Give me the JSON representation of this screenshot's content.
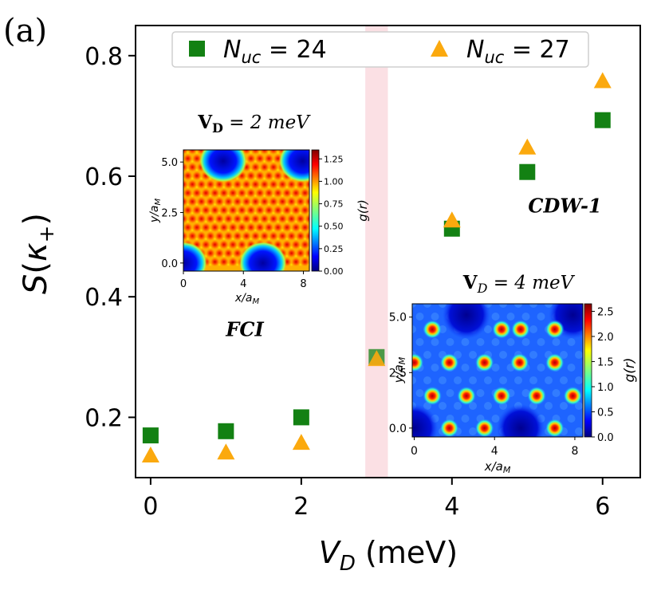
{
  "panel_label": "(a)",
  "chart_data": {
    "type": "scatter",
    "xlabel": "V_D (meV)",
    "ylabel": "S(κ+)",
    "xlim": [
      -0.2,
      6.5
    ],
    "ylim": [
      0.1,
      0.85
    ],
    "xticks": [
      "0",
      "2",
      "4",
      "6"
    ],
    "yticks": [
      "0.2",
      "0.4",
      "0.6",
      "0.8"
    ],
    "xtick_values": [
      0,
      2,
      4,
      6
    ],
    "ytick_values": [
      0.2,
      0.4,
      0.6,
      0.8
    ],
    "grid": false,
    "legend_placement": "top-center",
    "transition_band": {
      "x_range": [
        2.85,
        3.15
      ],
      "color": "#fbe0e4"
    },
    "series": [
      {
        "name": "N_uc = 24",
        "marker": "square",
        "color": "#138113",
        "x": [
          0,
          1,
          2,
          3,
          4,
          5,
          6
        ],
        "y": [
          0.17,
          0.177,
          0.2,
          0.3,
          0.513,
          0.607,
          0.693
        ]
      },
      {
        "name": "N_uc = 27",
        "marker": "triangle",
        "color": "#fba90e",
        "x": [
          0,
          1,
          2,
          3,
          4,
          5,
          6
        ],
        "y": [
          0.137,
          0.142,
          0.158,
          0.297,
          0.527,
          0.648,
          0.758
        ]
      }
    ],
    "annotations": [
      {
        "text": "FCI",
        "x": 1.25,
        "y": 0.335
      },
      {
        "text": "CDW-1",
        "x": 5.5,
        "y": 0.54
      }
    ]
  },
  "insets": [
    {
      "title_main": "V",
      "title_sub": "D",
      "title_rest": " = 2 meV",
      "xlabel": "x/a_M",
      "ylabel": "y/a_M",
      "xticks": [
        "0",
        "4",
        "8"
      ],
      "yticks": [
        "0.0",
        "2.5",
        "5.0"
      ],
      "colorbar_label": "g(r)",
      "colorbar_ticks": [
        "0.00",
        "0.25",
        "0.50",
        "0.75",
        "1.00",
        "1.25"
      ],
      "colorbar_max": 1.35
    },
    {
      "title_main": "V",
      "title_sub": "D",
      "title_rest": " = 4 meV",
      "xlabel": "x/a_M",
      "ylabel": "y/a_M",
      "xticks": [
        "0",
        "4",
        "8"
      ],
      "yticks": [
        "0.0",
        "2.5",
        "5.0"
      ],
      "colorbar_label": "g(r)",
      "colorbar_ticks": [
        "0.0",
        "0.5",
        "1.0",
        "1.5",
        "2.0",
        "2.5"
      ],
      "colorbar_max": 2.65
    }
  ],
  "colors": {
    "jet": [
      "#00007f",
      "#0000ff",
      "#007fff",
      "#00ffff",
      "#7fff7f",
      "#ffff00",
      "#ff7f00",
      "#ff0000",
      "#7f0000"
    ]
  }
}
